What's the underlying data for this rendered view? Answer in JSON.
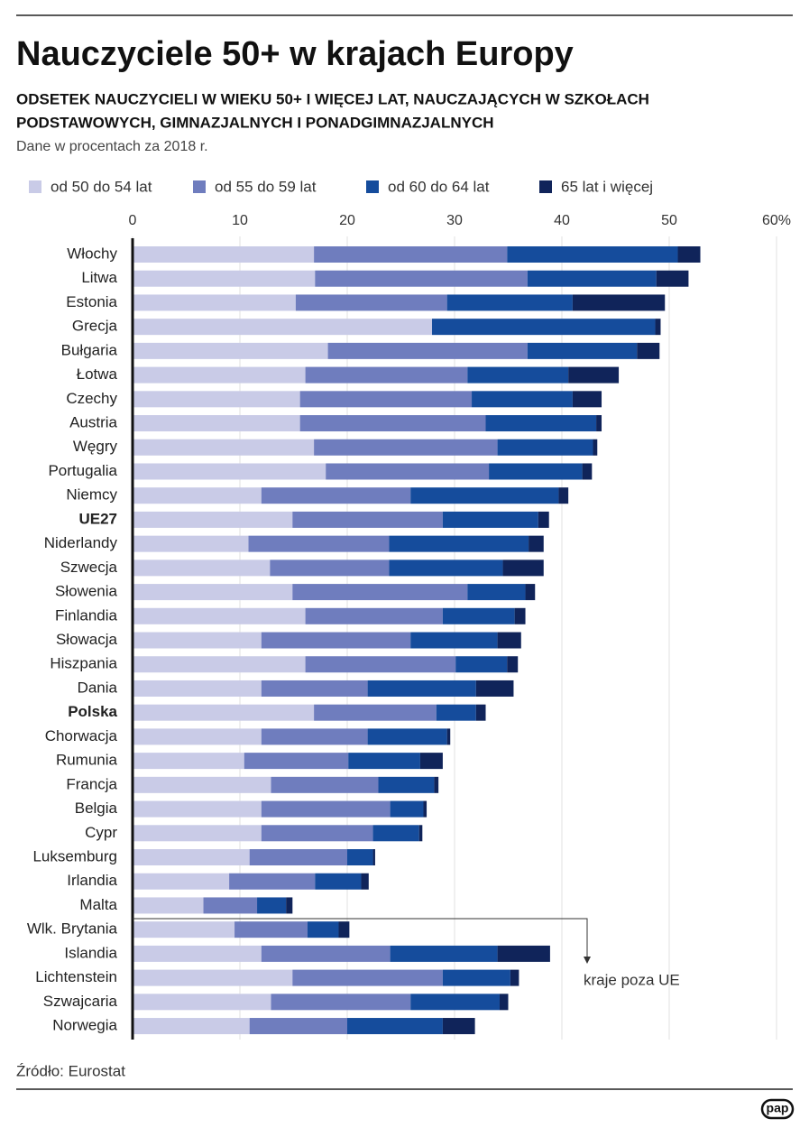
{
  "title": "Nauczyciele 50+ w krajach Europy",
  "subtitle": [
    "ODSETEK NAUCZYCIELI W WIEKU 50+ I WIĘCEJ LAT, NAUCZAJĄCYCH W SZKOŁACH",
    "PODSTAWOWYCH, GIMNAZJALNYCH I PONADGIMNAZJALNYCH"
  ],
  "note": "Dane w procentach za 2018 r.",
  "source": "Źródło: Eurostat",
  "logo": "pap",
  "chart_data": {
    "type": "stacked-bar-horizontal",
    "annotation": "kraje poza UE",
    "categories": [
      "Włochy",
      "Litwa",
      "Estonia",
      "Grecja",
      "Bułgaria",
      "Łotwa",
      "Czechy",
      "Austria",
      "Węgry",
      "Portugalia",
      "Niemcy",
      "UE27",
      "Niderlandy",
      "Szwecja",
      "Słowenia",
      "Finlandia",
      "Słowacja",
      "Hiszpania",
      "Dania",
      "Polska",
      "Chorwacja",
      "Rumunia",
      "Francja",
      "Belgia",
      "Cypr",
      "Luksemburg",
      "Irlandia",
      "Malta",
      "Wlk. Brytania",
      "Islandia",
      "Lichtenstein",
      "Szwajcaria",
      "Norwegia"
    ],
    "bold_categories": [
      11,
      19
    ],
    "series": [
      {
        "name": "od 50 do 54 lat",
        "color": "#c9cbe7",
        "values": [
          16.9,
          17.0,
          15.2,
          27.9,
          18.2,
          16.1,
          15.6,
          15.6,
          16.9,
          18.0,
          12.0,
          14.9,
          10.8,
          12.8,
          14.9,
          16.1,
          12.0,
          16.1,
          12.0,
          16.9,
          12.0,
          10.4,
          12.9,
          12.0,
          12.0,
          10.9,
          9.0,
          6.6,
          9.5,
          12.0,
          14.9,
          12.9,
          10.9
        ]
      },
      {
        "name": "od 55 do 59 lat",
        "color": "#6f7dbe",
        "values": [
          18.0,
          19.8,
          14.1,
          0,
          18.6,
          15.1,
          16.0,
          17.3,
          17.1,
          15.2,
          13.9,
          14.0,
          13.1,
          11.1,
          16.3,
          12.8,
          13.9,
          14.0,
          9.9,
          11.4,
          9.9,
          9.7,
          10.0,
          12.0,
          10.4,
          9.1,
          8.0,
          5.0,
          6.8,
          12.0,
          14.0,
          13.0,
          9.1
        ]
      },
      {
        "name": "od 60 do 64 lat",
        "color": "#154c9c",
        "values": [
          15.9,
          12.0,
          11.7,
          20.8,
          10.2,
          9.4,
          9.4,
          10.3,
          8.9,
          8.7,
          13.8,
          8.9,
          13.0,
          10.6,
          5.4,
          6.7,
          8.1,
          4.8,
          10.1,
          3.7,
          7.4,
          6.7,
          5.2,
          3.1,
          4.3,
          2.4,
          4.3,
          2.7,
          2.9,
          10.0,
          6.3,
          8.3,
          8.9
        ]
      },
      {
        "name": "65 lat i więcej",
        "color": "#10245a",
        "values": [
          2.1,
          3.0,
          8.6,
          0.5,
          2.1,
          4.7,
          2.7,
          0.5,
          0.4,
          0.9,
          0.9,
          1.0,
          1.4,
          3.8,
          0.9,
          1.0,
          2.2,
          1.0,
          3.5,
          0.9,
          0.3,
          2.1,
          0.4,
          0.3,
          0.3,
          0.2,
          0.7,
          0.6,
          1.0,
          4.9,
          0.8,
          0.8,
          3.0
        ]
      }
    ],
    "xlim": [
      0,
      60
    ],
    "xticks": [
      0,
      10,
      20,
      30,
      40,
      50,
      {
        "value": 60,
        "label": "60%"
      }
    ],
    "grid": true
  }
}
